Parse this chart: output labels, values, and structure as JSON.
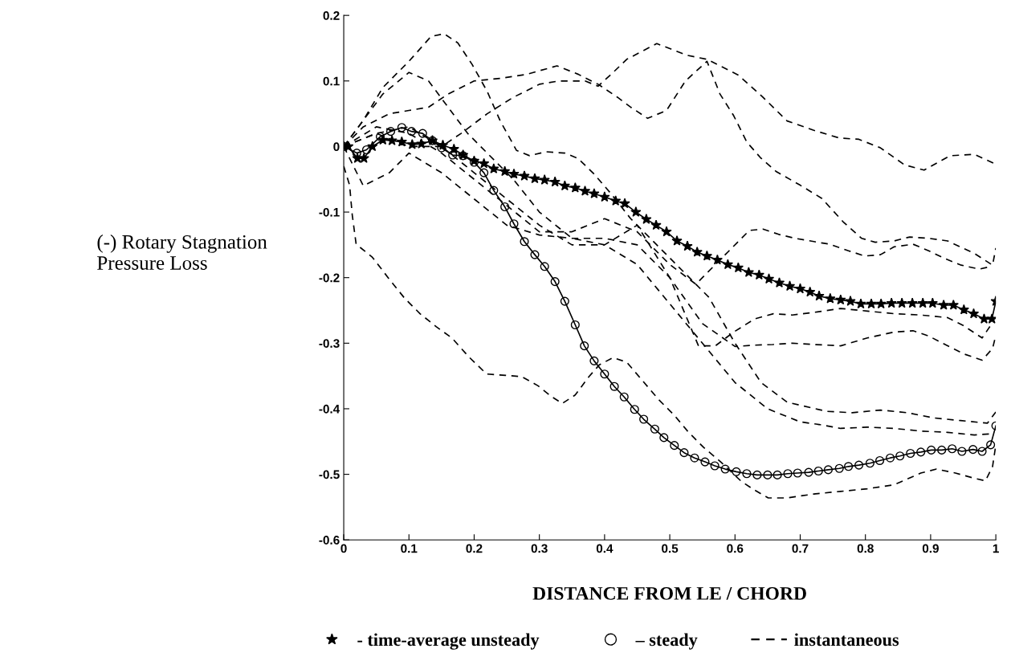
{
  "chart_data": {
    "type": "line",
    "xlabel": "DISTANCE FROM LE / CHORD",
    "ylabel": "(-) Rotary Stagnation\nPressure Loss",
    "xlim": [
      0,
      1
    ],
    "ylim": [
      -0.6,
      0.2
    ],
    "xticks": [
      0,
      0.1,
      0.2,
      0.3,
      0.4,
      0.5,
      0.6,
      0.7,
      0.8,
      0.9,
      1
    ],
    "yticks": [
      -0.6,
      -0.5,
      -0.4,
      -0.3,
      -0.2,
      -0.1,
      0,
      0.1,
      0.2
    ],
    "grid": false,
    "legend": "bottom",
    "series": [
      {
        "name": "- time-average unsteady",
        "color": "#000000",
        "marker": "star",
        "line_style": "solid",
        "x": [
          0,
          0.007,
          0.021,
          0.031,
          0.044,
          0.06,
          0.074,
          0.089,
          0.105,
          0.119,
          0.136,
          0.152,
          0.169,
          0.183,
          0.2,
          0.215,
          0.23,
          0.247,
          0.261,
          0.277,
          0.293,
          0.308,
          0.324,
          0.339,
          0.355,
          0.37,
          0.384,
          0.4,
          0.417,
          0.431,
          0.448,
          0.464,
          0.479,
          0.495,
          0.511,
          0.527,
          0.542,
          0.557,
          0.573,
          0.589,
          0.605,
          0.621,
          0.637,
          0.652,
          0.668,
          0.684,
          0.7,
          0.715,
          0.729,
          0.746,
          0.762,
          0.777,
          0.793,
          0.809,
          0.824,
          0.84,
          0.856,
          0.872,
          0.888,
          0.903,
          0.92,
          0.935,
          0.951,
          0.966,
          0.982,
          0.994,
          1.0
        ],
        "values": [
          0,
          0,
          -0.018,
          -0.018,
          0,
          0.01,
          0.009,
          0.007,
          0.003,
          0.004,
          0.009,
          0.002,
          -0.004,
          -0.013,
          -0.022,
          -0.026,
          -0.034,
          -0.038,
          -0.042,
          -0.045,
          -0.049,
          -0.051,
          -0.054,
          -0.06,
          -0.063,
          -0.068,
          -0.072,
          -0.077,
          -0.083,
          -0.087,
          -0.1,
          -0.111,
          -0.12,
          -0.13,
          -0.144,
          -0.152,
          -0.161,
          -0.167,
          -0.173,
          -0.18,
          -0.185,
          -0.192,
          -0.196,
          -0.202,
          -0.208,
          -0.213,
          -0.217,
          -0.222,
          -0.228,
          -0.232,
          -0.234,
          -0.236,
          -0.24,
          -0.24,
          -0.24,
          -0.239,
          -0.239,
          -0.239,
          -0.239,
          -0.239,
          -0.242,
          -0.242,
          -0.249,
          -0.255,
          -0.263,
          -0.263,
          -0.236
        ]
      },
      {
        "name": "– steady",
        "color": "#000000",
        "marker": "circle",
        "line_style": "solid",
        "x": [
          0,
          0.02,
          0.035,
          0.056,
          0.072,
          0.089,
          0.104,
          0.121,
          0.136,
          0.15,
          0.167,
          0.183,
          0.2,
          0.215,
          0.23,
          0.247,
          0.261,
          0.277,
          0.293,
          0.308,
          0.324,
          0.339,
          0.355,
          0.369,
          0.384,
          0.4,
          0.415,
          0.43,
          0.446,
          0.46,
          0.477,
          0.491,
          0.507,
          0.522,
          0.538,
          0.554,
          0.569,
          0.585,
          0.602,
          0.618,
          0.634,
          0.65,
          0.665,
          0.681,
          0.696,
          0.713,
          0.728,
          0.743,
          0.76,
          0.774,
          0.79,
          0.807,
          0.822,
          0.838,
          0.853,
          0.869,
          0.885,
          0.901,
          0.917,
          0.933,
          0.948,
          0.965,
          0.979,
          0.992,
          1.0
        ],
        "values": [
          0,
          -0.01,
          -0.005,
          0.015,
          0.023,
          0.029,
          0.023,
          0.02,
          0.009,
          -0.002,
          -0.013,
          -0.014,
          -0.024,
          -0.04,
          -0.067,
          -0.092,
          -0.118,
          -0.145,
          -0.165,
          -0.183,
          -0.206,
          -0.236,
          -0.272,
          -0.304,
          -0.327,
          -0.347,
          -0.366,
          -0.382,
          -0.401,
          -0.416,
          -0.431,
          -0.444,
          -0.456,
          -0.467,
          -0.475,
          -0.481,
          -0.487,
          -0.492,
          -0.496,
          -0.499,
          -0.501,
          -0.501,
          -0.501,
          -0.499,
          -0.498,
          -0.497,
          -0.495,
          -0.493,
          -0.491,
          -0.488,
          -0.486,
          -0.483,
          -0.479,
          -0.475,
          -0.472,
          -0.468,
          -0.466,
          -0.463,
          -0.463,
          -0.461,
          -0.465,
          -0.462,
          -0.465,
          -0.455,
          -0.426
        ]
      },
      {
        "name": "instantaneous",
        "color": "#000000",
        "marker": "none",
        "line_style": "dashed",
        "x": [
          0,
          0.05,
          0.1,
          0.15,
          0.18,
          0.22,
          0.26,
          0.3,
          0.33,
          0.37,
          0.39,
          0.41,
          0.434,
          0.48,
          0.527,
          0.557,
          0.605,
          0.642,
          0.68,
          0.72,
          0.76,
          0.79,
          0.823,
          0.86,
          0.89,
          0.93,
          0.967,
          1.0
        ],
        "values": [
          0,
          0.02,
          0,
          0,
          0.02,
          0.05,
          0.075,
          0.095,
          0.1,
          0.1,
          0.092,
          0.11,
          0.133,
          0.157,
          0.139,
          0.133,
          0.109,
          0.076,
          0.039,
          0.025,
          0.013,
          0.011,
          -0.002,
          -0.028,
          -0.036,
          -0.014,
          -0.012,
          -0.027
        ]
      },
      {
        "color": "#000000",
        "marker": "none",
        "line_style": "dashed",
        "x": [
          0,
          0.03,
          0.07,
          0.1,
          0.13,
          0.16,
          0.2,
          0.24,
          0.28,
          0.327,
          0.36,
          0.39,
          0.42,
          0.44,
          0.466,
          0.495,
          0.524,
          0.557,
          0.577,
          0.598,
          0.618,
          0.639,
          0.663,
          0.7,
          0.733,
          0.766,
          0.794,
          0.815,
          0.844,
          0.868,
          0.897,
          0.926,
          0.967,
          0.995,
          1.0
        ],
        "values": [
          0,
          0.03,
          0.05,
          0.055,
          0.06,
          0.08,
          0.1,
          0.104,
          0.11,
          0.123,
          0.11,
          0.095,
          0.075,
          0.06,
          0.043,
          0.055,
          0.1,
          0.13,
          0.08,
          0.047,
          0.007,
          -0.017,
          -0.038,
          -0.059,
          -0.079,
          -0.115,
          -0.14,
          -0.146,
          -0.144,
          -0.138,
          -0.14,
          -0.144,
          -0.163,
          -0.181,
          -0.155
        ]
      },
      {
        "color": "#000000",
        "marker": "none",
        "line_style": "dashed",
        "x": [
          0,
          0.05,
          0.1,
          0.15,
          0.2,
          0.25,
          0.3,
          0.35,
          0.4,
          0.45,
          0.5,
          0.54,
          0.58,
          0.622,
          0.643,
          0.667,
          0.692,
          0.721,
          0.745,
          0.774,
          0.799,
          0.823,
          0.844,
          0.873,
          0.897,
          0.922,
          0.947,
          0.975,
          0.992
        ],
        "values": [
          0,
          0.03,
          0.02,
          -0.01,
          -0.05,
          -0.09,
          -0.13,
          -0.13,
          -0.11,
          -0.13,
          -0.18,
          -0.21,
          -0.17,
          -0.128,
          -0.126,
          -0.134,
          -0.14,
          -0.145,
          -0.149,
          -0.159,
          -0.167,
          -0.165,
          -0.153,
          -0.149,
          -0.159,
          -0.171,
          -0.181,
          -0.187,
          -0.183
        ]
      },
      {
        "color": "#000000",
        "marker": "none",
        "line_style": "dashed",
        "x": [
          0,
          0.05,
          0.1,
          0.15,
          0.2,
          0.25,
          0.3,
          0.35,
          0.4,
          0.45,
          0.5,
          0.544,
          0.57,
          0.598,
          0.63,
          0.659,
          0.688,
          0.721,
          0.762,
          0.803,
          0.844,
          0.885,
          0.926,
          0.95,
          0.979,
          0.996
        ],
        "values": [
          0,
          0.02,
          0.03,
          0,
          -0.04,
          -0.08,
          -0.12,
          -0.15,
          -0.15,
          -0.12,
          -0.2,
          -0.304,
          -0.304,
          -0.283,
          -0.263,
          -0.255,
          -0.257,
          -0.253,
          -0.247,
          -0.251,
          -0.255,
          -0.257,
          -0.261,
          -0.273,
          -0.292,
          -0.267
        ]
      },
      {
        "color": "#000000",
        "marker": "none",
        "line_style": "dashed",
        "x": [
          0,
          0.03,
          0.07,
          0.1,
          0.15,
          0.2,
          0.25,
          0.3,
          0.35,
          0.4,
          0.45,
          0.5,
          0.55,
          0.6,
          0.63,
          0.658,
          0.688,
          0.721,
          0.762,
          0.803,
          0.844,
          0.873,
          0.897,
          0.926,
          0.95,
          0.979,
          0.995,
          1.0
        ],
        "values": [
          0,
          -0.06,
          -0.04,
          -0.01,
          -0.04,
          -0.08,
          -0.12,
          -0.135,
          -0.14,
          -0.14,
          -0.15,
          -0.2,
          -0.27,
          -0.305,
          -0.303,
          -0.302,
          -0.3,
          -0.302,
          -0.304,
          -0.292,
          -0.283,
          -0.281,
          -0.289,
          -0.304,
          -0.316,
          -0.326,
          -0.308,
          -0.288
        ]
      },
      {
        "color": "#000000",
        "marker": "none",
        "line_style": "dashed",
        "x": [
          0,
          0.03,
          0.06,
          0.1,
          0.134,
          0.154,
          0.175,
          0.197,
          0.22,
          0.24,
          0.265,
          0.285,
          0.31,
          0.339,
          0.359,
          0.384,
          0.409,
          0.44,
          0.48,
          0.52,
          0.56,
          0.6,
          0.64,
          0.68,
          0.741,
          0.78,
          0.823,
          0.864,
          0.905,
          0.946,
          0.987,
          1.0
        ],
        "values": [
          0,
          0.04,
          0.09,
          0.13,
          0.168,
          0.172,
          0.158,
          0.125,
          0.084,
          0.039,
          -0.006,
          -0.014,
          -0.008,
          -0.01,
          -0.018,
          -0.042,
          -0.071,
          -0.11,
          -0.15,
          -0.19,
          -0.23,
          -0.3,
          -0.36,
          -0.39,
          -0.404,
          -0.406,
          -0.402,
          -0.406,
          -0.414,
          -0.418,
          -0.422,
          -0.405
        ]
      },
      {
        "color": "#000000",
        "marker": "none",
        "line_style": "dashed",
        "x": [
          0,
          0.03,
          0.06,
          0.1,
          0.13,
          0.16,
          0.19,
          0.22,
          0.26,
          0.3,
          0.35,
          0.4,
          0.45,
          0.5,
          0.55,
          0.6,
          0.65,
          0.7,
          0.729,
          0.762,
          0.803,
          0.844,
          0.885,
          0.926,
          0.967,
          0.995
        ],
        "values": [
          0,
          0.04,
          0.08,
          0.113,
          0.1,
          0.06,
          0.02,
          -0.01,
          -0.05,
          -0.1,
          -0.14,
          -0.15,
          -0.18,
          -0.24,
          -0.3,
          -0.36,
          -0.4,
          -0.42,
          -0.424,
          -0.43,
          -0.428,
          -0.43,
          -0.434,
          -0.436,
          -0.44,
          -0.438
        ]
      },
      {
        "color": "#000000",
        "marker": "none",
        "line_style": "dashed",
        "x": [
          0,
          0.009,
          0.013,
          0.019,
          0.044,
          0.068,
          0.093,
          0.117,
          0.142,
          0.166,
          0.191,
          0.219,
          0.248,
          0.273,
          0.298,
          0.318,
          0.335,
          0.355,
          0.376,
          0.392,
          0.413,
          0.434,
          0.458,
          0.483,
          0.507,
          0.528,
          0.552,
          0.577,
          0.61,
          0.63,
          0.651,
          0.68,
          0.721,
          0.762,
          0.803,
          0.844,
          0.885,
          0.909,
          0.938,
          0.967,
          0.984,
          0.995,
          1.0
        ],
        "values": [
          -0.03,
          -0.059,
          -0.104,
          -0.149,
          -0.169,
          -0.2,
          -0.231,
          -0.255,
          -0.275,
          -0.292,
          -0.32,
          -0.347,
          -0.349,
          -0.351,
          -0.365,
          -0.381,
          -0.392,
          -0.379,
          -0.351,
          -0.333,
          -0.322,
          -0.329,
          -0.357,
          -0.386,
          -0.41,
          -0.435,
          -0.459,
          -0.48,
          -0.511,
          -0.524,
          -0.536,
          -0.536,
          -0.53,
          -0.526,
          -0.522,
          -0.516,
          -0.498,
          -0.492,
          -0.498,
          -0.506,
          -0.51,
          -0.488,
          -0.455
        ]
      }
    ]
  }
}
